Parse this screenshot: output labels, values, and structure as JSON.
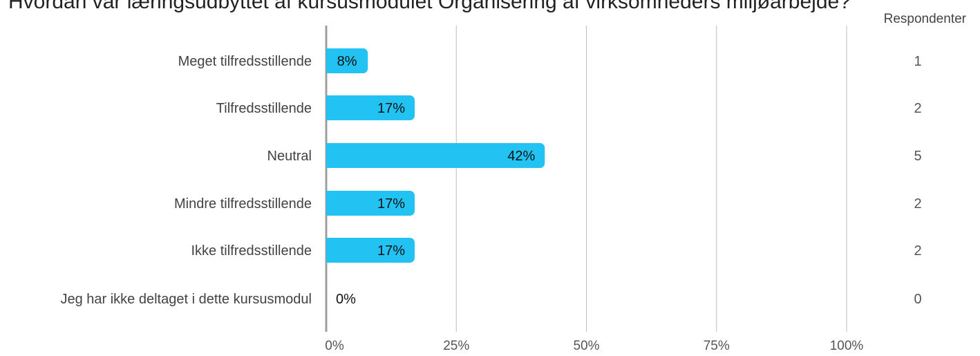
{
  "chart_data": {
    "type": "bar",
    "orientation": "horizontal",
    "title": "Hvordan var læringsudbyttet af kursusmodulet Organisering af virksomheders miljøarbejde?",
    "respondents_header": "Respondenter",
    "categories": [
      "Meget tilfredsstillende",
      "Tilfredsstillende",
      "Neutral",
      "Mindre tilfredsstillende",
      "Ikke tilfredsstillende",
      "Jeg har ikke deltaget i dette kursusmodul"
    ],
    "values": [
      8,
      17,
      42,
      17,
      17,
      0
    ],
    "value_labels": [
      "8%",
      "17%",
      "42%",
      "17%",
      "17%",
      "0%"
    ],
    "respondents": [
      "1",
      "2",
      "5",
      "2",
      "2",
      "0"
    ],
    "xlim": [
      0,
      100
    ],
    "x_ticks": [
      0,
      25,
      50,
      75,
      100
    ],
    "x_tick_labels": [
      "0%",
      "25%",
      "50%",
      "75%",
      "100%"
    ],
    "grid": true,
    "bar_color": "#22c3f3"
  }
}
